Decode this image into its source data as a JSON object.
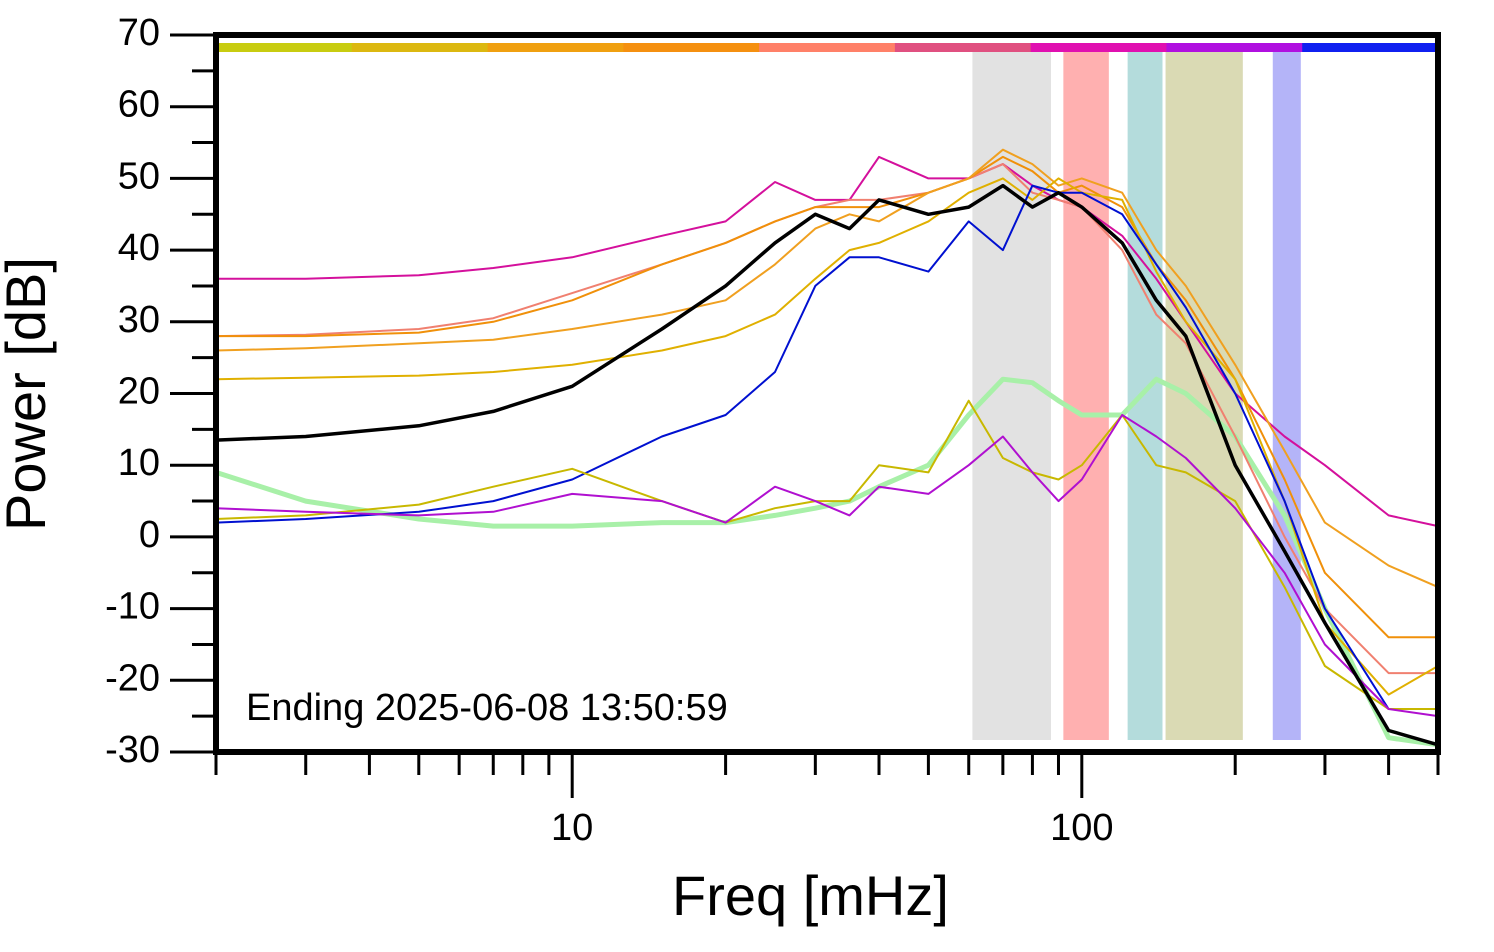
{
  "chart_data": {
    "type": "line",
    "xlabel": "Freq [mHz]",
    "ylabel": "Power [dB]",
    "annotation": "Ending 2025-06-08 13:50:59",
    "xscale": "log",
    "xlim": [
      2,
      500
    ],
    "ylim": [
      -30,
      70
    ],
    "xticks": [
      10,
      100
    ],
    "xminor_ticks": [
      2,
      3,
      4,
      5,
      6,
      7,
      8,
      9,
      20,
      30,
      40,
      50,
      60,
      70,
      80,
      90,
      200,
      300,
      400,
      500
    ],
    "yticks": [
      -30,
      -20,
      -10,
      0,
      10,
      20,
      30,
      40,
      50,
      60,
      70
    ],
    "yminor_ticks": [
      -25,
      -15,
      -5,
      5,
      15,
      25,
      35,
      45,
      55,
      65
    ],
    "color_bar": [
      "#c8cc10",
      "#dcb810",
      "#f0a010",
      "#f59010",
      "#ff8068",
      "#e05080",
      "#e010b0",
      "#b010e0",
      "#1020f0"
    ],
    "bands": [
      {
        "x": [
          61,
          87
        ],
        "color": "#e2e2e2"
      },
      {
        "x": [
          92,
          113
        ],
        "color": "#ffb0b0"
      },
      {
        "x": [
          123,
          144
        ],
        "color": "#b4dcdc"
      },
      {
        "x": [
          146,
          207
        ],
        "color": "#dadab4"
      },
      {
        "x": [
          237,
          269
        ],
        "color": "#b4b4f8"
      }
    ],
    "x": [
      2,
      3,
      5,
      7,
      10,
      15,
      20,
      25,
      30,
      35,
      40,
      50,
      60,
      70,
      80,
      90,
      100,
      120,
      140,
      160,
      200,
      250,
      300,
      400,
      500
    ],
    "series": [
      {
        "color": "#a8f0a8",
        "width": 5,
        "values": [
          9,
          5,
          2.5,
          1.5,
          1.5,
          2,
          2,
          3,
          4,
          5,
          7,
          10,
          17,
          22,
          21.5,
          19,
          17,
          17,
          22,
          20,
          14,
          3,
          -10,
          -28,
          -29
        ]
      },
      {
        "color": "#d4109c",
        "width": 2,
        "values": [
          36,
          36,
          36.5,
          37.5,
          39,
          42,
          44,
          49.5,
          47,
          47,
          53,
          50,
          50,
          52,
          49,
          47,
          46,
          42,
          36,
          30,
          20,
          14,
          10,
          3,
          1.5
        ]
      },
      {
        "color": "#f08070",
        "width": 2,
        "values": [
          28,
          28.2,
          29,
          30.5,
          34,
          38,
          41,
          44,
          46,
          47,
          47,
          48,
          50,
          52,
          48,
          47,
          46,
          40,
          31,
          27,
          14,
          0,
          -10,
          -19,
          -19
        ]
      },
      {
        "color": "#f0900a",
        "width": 2,
        "values": [
          28,
          28,
          28.5,
          30,
          33,
          38,
          41,
          44,
          46,
          46,
          46,
          48,
          50,
          53,
          51,
          48,
          49,
          46,
          38,
          33,
          22,
          8,
          -5,
          -14,
          -14
        ]
      },
      {
        "color": "#f0a020",
        "width": 2,
        "values": [
          26,
          26.3,
          27,
          27.5,
          29,
          31,
          33,
          38,
          43,
          45,
          44,
          48,
          50,
          54,
          52,
          49,
          50,
          48,
          40,
          35,
          24,
          12,
          2,
          -4,
          -7
        ]
      },
      {
        "color": "#e0b000",
        "width": 2,
        "values": [
          22,
          22.2,
          22.5,
          23,
          24,
          26,
          28,
          31,
          36,
          40,
          41,
          44,
          48,
          50,
          47,
          50,
          48,
          47,
          37,
          30,
          22,
          5,
          -12,
          -22,
          -18
        ]
      },
      {
        "color": "#0010d0",
        "width": 2,
        "values": [
          2,
          2.5,
          3.5,
          5,
          8,
          14,
          17,
          23,
          35,
          39,
          39,
          37,
          44,
          40,
          49,
          48,
          48,
          45,
          38,
          32,
          20,
          5,
          -10,
          -24,
          -24
        ]
      },
      {
        "color": "#c8b800",
        "width": 2,
        "values": [
          2.5,
          3,
          4.5,
          7,
          9.5,
          5,
          2,
          4,
          5,
          5,
          10,
          9,
          19,
          11,
          9,
          8,
          10,
          17,
          10,
          9,
          5,
          -7,
          -18,
          -24,
          -24
        ]
      },
      {
        "color": "#b010d0",
        "width": 2,
        "values": [
          4,
          3.5,
          3,
          3.5,
          6,
          5,
          2,
          7,
          5,
          3,
          7,
          6,
          10,
          14,
          9,
          5,
          8,
          17,
          14,
          11,
          4,
          -5,
          -15,
          -24,
          -25
        ]
      },
      {
        "color": "#000000",
        "width": 3.5,
        "values": [
          13.5,
          14,
          15.5,
          17.5,
          21,
          29,
          35,
          41,
          45,
          43,
          47,
          45,
          46,
          49,
          46,
          48,
          46,
          41,
          33,
          28,
          10,
          -2,
          -12,
          -27,
          -29
        ]
      }
    ]
  }
}
